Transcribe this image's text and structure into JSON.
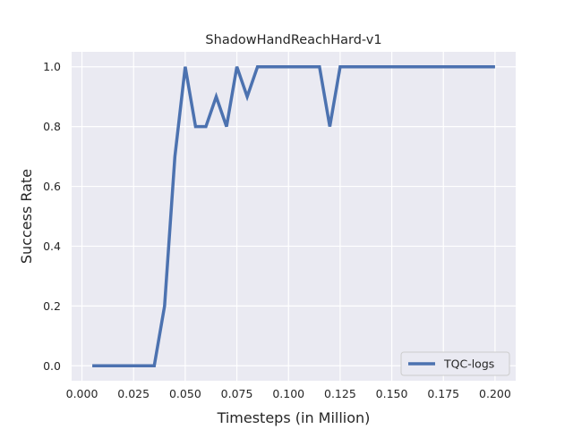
{
  "chart_data": {
    "type": "line",
    "title": "ShadowHandReachHard-v1",
    "xlabel": "Timesteps (in Million)",
    "ylabel": "Success Rate",
    "xlim": [
      -0.005,
      0.21
    ],
    "ylim": [
      -0.05,
      1.05
    ],
    "xticks": [
      0.0,
      0.025,
      0.05,
      0.075,
      0.1,
      0.125,
      0.15,
      0.175,
      0.2
    ],
    "xtick_labels": [
      "0.000",
      "0.025",
      "0.050",
      "0.075",
      "0.100",
      "0.125",
      "0.150",
      "0.175",
      "0.200"
    ],
    "yticks": [
      0.0,
      0.2,
      0.4,
      0.6,
      0.8,
      1.0
    ],
    "ytick_labels": [
      "0.0",
      "0.2",
      "0.4",
      "0.6",
      "0.8",
      "1.0"
    ],
    "grid": true,
    "legend_position": "lower-right",
    "series": [
      {
        "name": "TQC-logs",
        "color": "#4c72b0",
        "x": [
          0.005,
          0.01,
          0.015,
          0.02,
          0.025,
          0.03,
          0.035,
          0.04,
          0.045,
          0.05,
          0.055,
          0.06,
          0.065,
          0.07,
          0.075,
          0.08,
          0.085,
          0.09,
          0.095,
          0.1,
          0.105,
          0.11,
          0.115,
          0.12,
          0.125,
          0.13,
          0.135,
          0.14,
          0.145,
          0.15,
          0.155,
          0.16,
          0.165,
          0.17,
          0.175,
          0.18,
          0.185,
          0.19,
          0.195,
          0.2
        ],
        "y": [
          0.0,
          0.0,
          0.0,
          0.0,
          0.0,
          0.0,
          0.0,
          0.2,
          0.7,
          1.0,
          0.8,
          0.8,
          0.9,
          0.8,
          1.0,
          0.9,
          1.0,
          1.0,
          1.0,
          1.0,
          1.0,
          1.0,
          1.0,
          0.8,
          1.0,
          1.0,
          1.0,
          1.0,
          1.0,
          1.0,
          1.0,
          1.0,
          1.0,
          1.0,
          1.0,
          1.0,
          1.0,
          1.0,
          1.0,
          1.0
        ]
      }
    ]
  }
}
